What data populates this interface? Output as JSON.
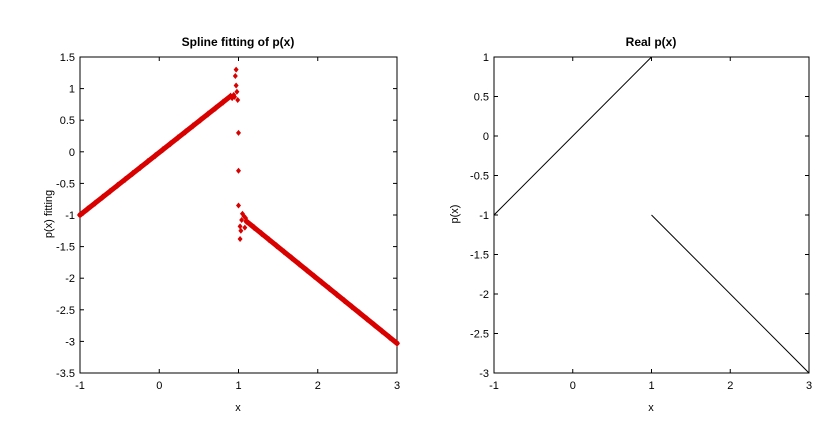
{
  "chart_data": [
    {
      "type": "scatter",
      "title": "Spline fitting of p(x)",
      "xlabel": "x",
      "ylabel": "p(x) fitting",
      "xlim": [
        -1,
        3
      ],
      "ylim": [
        -3.5,
        1.5
      ],
      "xticks": [
        "-1",
        "0",
        "1",
        "2",
        "3"
      ],
      "yticks": [
        "1.5",
        "1",
        "0.5",
        "0",
        "-0.5",
        "-1",
        "-1.5",
        "-2",
        "-2.5",
        "-3",
        "-3.5"
      ],
      "marker_color": "#d90000",
      "series": [
        {
          "segments": [
            {
              "x": [
                -1,
                0.9
              ],
              "y": [
                -1,
                0.88
              ]
            },
            {
              "x": [
                1.1,
                3
              ],
              "y": [
                -1.1,
                -3.03
              ]
            }
          ],
          "scattered_points": [
            {
              "x": 0.92,
              "y": 0.85
            },
            {
              "x": 0.94,
              "y": 0.9
            },
            {
              "x": 0.95,
              "y": 0.87
            },
            {
              "x": 0.96,
              "y": 1.2
            },
            {
              "x": 0.97,
              "y": 1.3
            },
            {
              "x": 0.97,
              "y": 1.05
            },
            {
              "x": 0.98,
              "y": 0.95
            },
            {
              "x": 0.99,
              "y": 0.82
            },
            {
              "x": 1.0,
              "y": 0.3
            },
            {
              "x": 1.0,
              "y": -0.3
            },
            {
              "x": 1.0,
              "y": -0.85
            },
            {
              "x": 1.02,
              "y": -1.18
            },
            {
              "x": 1.02,
              "y": -1.38
            },
            {
              "x": 1.03,
              "y": -1.25
            },
            {
              "x": 1.04,
              "y": -1.08
            },
            {
              "x": 1.05,
              "y": -0.98
            },
            {
              "x": 1.07,
              "y": -1.02
            },
            {
              "x": 1.08,
              "y": -1.2
            },
            {
              "x": 1.09,
              "y": -1.05
            }
          ]
        }
      ],
      "grid": false
    },
    {
      "type": "line",
      "title": "Real p(x)",
      "xlabel": "x",
      "ylabel": "p(x)",
      "xlim": [
        -1,
        3
      ],
      "ylim": [
        -3,
        1
      ],
      "xticks": [
        "-1",
        "0",
        "1",
        "2",
        "3"
      ],
      "yticks": [
        "1",
        "0.5",
        "0",
        "-0.5",
        "-1",
        "-1.5",
        "-2",
        "-2.5",
        "-3"
      ],
      "line_color": "#000000",
      "series": [
        {
          "x": [
            -1,
            1
          ],
          "y": [
            -1,
            1
          ]
        },
        {
          "x": [
            1,
            3
          ],
          "y": [
            -1,
            -3
          ]
        }
      ],
      "grid": false
    }
  ]
}
